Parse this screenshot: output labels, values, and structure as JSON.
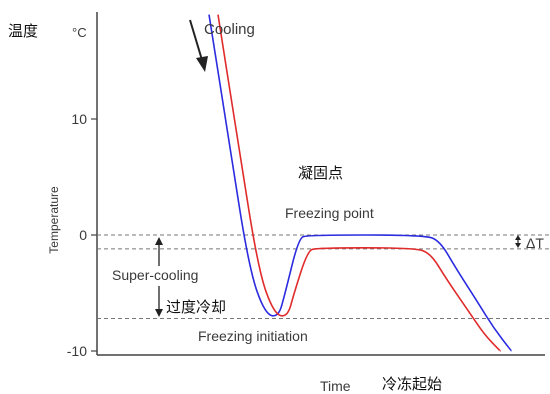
{
  "chart_data": {
    "type": "line",
    "title": "",
    "xlabel": "Time",
    "ylabel": "Temperature",
    "unit": "°C",
    "ylim": [
      -11,
      18
    ],
    "y_ticks": [
      10,
      0,
      -10
    ],
    "x_range": [
      0,
      100
    ],
    "grid": false,
    "series": [
      {
        "color": "#2b2be0",
        "points": [
          [
            25,
            19
          ],
          [
            29.5,
            8
          ],
          [
            34,
            -3
          ],
          [
            37.5,
            -6.8
          ],
          [
            40.5,
            -7.1
          ],
          [
            42,
            -5
          ],
          [
            45,
            -0.3
          ],
          [
            47,
            0
          ],
          [
            73,
            0
          ],
          [
            76.5,
            -0.5
          ],
          [
            80,
            -2.8
          ],
          [
            85,
            -5.8
          ],
          [
            88.5,
            -8
          ],
          [
            92.5,
            -10
          ]
        ]
      },
      {
        "color": "#e02b2b",
        "points": [
          [
            27,
            19
          ],
          [
            31.5,
            8
          ],
          [
            36,
            -3
          ],
          [
            39.5,
            -6.8
          ],
          [
            42.5,
            -7.1
          ],
          [
            44,
            -5
          ],
          [
            47,
            -1.4
          ],
          [
            49,
            -1.1
          ],
          [
            71,
            -1.1
          ],
          [
            74.5,
            -1.6
          ],
          [
            78,
            -3.8
          ],
          [
            83,
            -6.6
          ],
          [
            86.5,
            -8.6
          ],
          [
            90,
            -10
          ]
        ]
      }
    ],
    "reference_lines": [
      {
        "y": 0,
        "label": "Freezing point"
      },
      {
        "y": -1.2,
        "label": ""
      },
      {
        "y": -7.2,
        "label": "Freezing initiation"
      }
    ],
    "annotations": {
      "cooling": "Cooling",
      "super_cooling": "Super-cooling",
      "delta_t": "ΔT",
      "freezing_point": "Freezing point",
      "freezing_initiation": "Freezing initiation"
    },
    "chinese_labels": {
      "temperature": "温度",
      "freezing_point": "凝固点",
      "supercooling": "过度冷却",
      "freezing_start": "冷冻起始"
    }
  }
}
